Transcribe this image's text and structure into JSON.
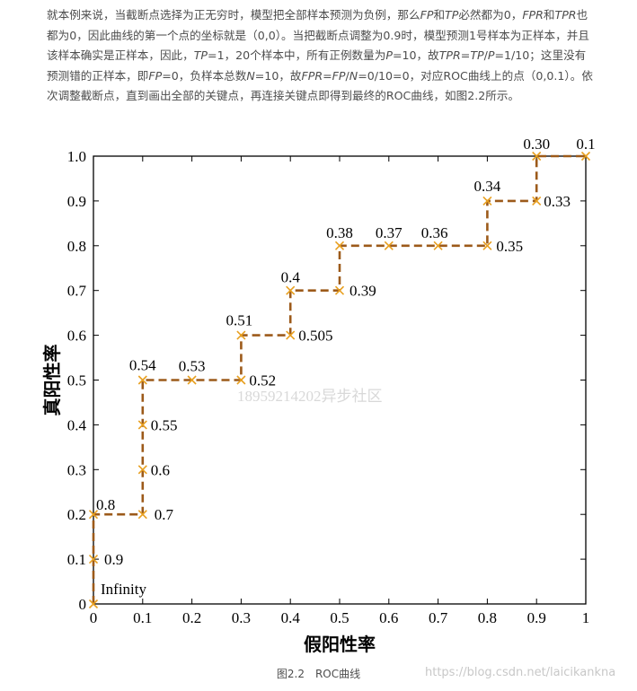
{
  "paragraph": {
    "parts": [
      {
        "t": "就本例来说，当截断点选择为正无穷时，模型把全部样本预测为负例，那么"
      },
      {
        "t": "FP",
        "i": true
      },
      {
        "t": "和"
      },
      {
        "t": "TP",
        "i": true
      },
      {
        "t": "必然都为0，"
      },
      {
        "t": "FPR",
        "i": true
      },
      {
        "t": "和"
      },
      {
        "t": "TPR",
        "i": true
      },
      {
        "t": "也都为0，因此曲线的第一个点的坐标就是（0,0）。当把截断点调整为0.9时，模型预测1号样本为正样本，并且该样本确实是正样本，因此，"
      },
      {
        "t": "TP",
        "i": true
      },
      {
        "t": "=1，20个样本中，所有正例数量为"
      },
      {
        "t": "P",
        "i": true
      },
      {
        "t": "=10，故"
      },
      {
        "t": "TPR",
        "i": true
      },
      {
        "t": "="
      },
      {
        "t": "TP",
        "i": true
      },
      {
        "t": "/"
      },
      {
        "t": "P",
        "i": true
      },
      {
        "t": "=1/10；这里没有预测错的正样本，即"
      },
      {
        "t": "FP",
        "i": true
      },
      {
        "t": "=0，负样本总数"
      },
      {
        "t": "N",
        "i": true
      },
      {
        "t": "=10，故"
      },
      {
        "t": "FPR",
        "i": true
      },
      {
        "t": "="
      },
      {
        "t": "FP",
        "i": true
      },
      {
        "t": "/"
      },
      {
        "t": "N",
        "i": true
      },
      {
        "t": "=0/10=0，对应ROC曲线上的点（0,0.1）。依次调整截断点，直到画出全部的关键点，再连接关键点即得到最终的ROC曲线，如图2.2所示。"
      }
    ]
  },
  "caption": "图2.2　ROC曲线",
  "watermark_chart": "18959214202异步社区",
  "watermark_site": "https://blog.csdn.net/laicikankna",
  "colors": {
    "line": "#9c5a1a",
    "marker": "#e8a020",
    "text": "#4d4d4d"
  },
  "chart_data": {
    "type": "line",
    "xlabel": "假阳性率",
    "ylabel": "真阳性率",
    "xlim": [
      0,
      1
    ],
    "ylim": [
      0,
      1
    ],
    "xticks": [
      "0",
      "0.1",
      "0.2",
      "0.3",
      "0.4",
      "0.5",
      "0.6",
      "0.7",
      "0.8",
      "0.9",
      "1"
    ],
    "yticks": [
      "0",
      "0.1",
      "0.2",
      "0.3",
      "0.4",
      "0.5",
      "0.6",
      "0.7",
      "0.8",
      "0.9",
      "1.0"
    ],
    "line_style": "dashed",
    "marker": "x",
    "grid": false,
    "points": [
      {
        "x": 0,
        "y": 0,
        "label": "Infinity"
      },
      {
        "x": 0,
        "y": 0.1,
        "label": "0.9"
      },
      {
        "x": 0,
        "y": 0.2,
        "label": "0.8"
      },
      {
        "x": 0.1,
        "y": 0.2,
        "label": "0.7"
      },
      {
        "x": 0.1,
        "y": 0.3,
        "label": "0.6"
      },
      {
        "x": 0.1,
        "y": 0.4,
        "label": "0.55"
      },
      {
        "x": 0.1,
        "y": 0.5,
        "label": "0.54"
      },
      {
        "x": 0.2,
        "y": 0.5,
        "label": "0.53"
      },
      {
        "x": 0.3,
        "y": 0.5,
        "label": "0.52"
      },
      {
        "x": 0.3,
        "y": 0.6,
        "label": "0.51"
      },
      {
        "x": 0.4,
        "y": 0.6,
        "label": "0.505"
      },
      {
        "x": 0.4,
        "y": 0.7,
        "label": "0.4"
      },
      {
        "x": 0.5,
        "y": 0.7,
        "label": "0.39"
      },
      {
        "x": 0.5,
        "y": 0.8,
        "label": "0.38"
      },
      {
        "x": 0.6,
        "y": 0.8,
        "label": "0.37"
      },
      {
        "x": 0.7,
        "y": 0.8,
        "label": "0.36"
      },
      {
        "x": 0.8,
        "y": 0.8,
        "label": "0.35"
      },
      {
        "x": 0.8,
        "y": 0.9,
        "label": "0.34"
      },
      {
        "x": 0.9,
        "y": 0.9,
        "label": "0.33"
      },
      {
        "x": 0.9,
        "y": 1.0,
        "label": "0.30"
      },
      {
        "x": 1.0,
        "y": 1.0,
        "label": "0.1"
      }
    ]
  }
}
